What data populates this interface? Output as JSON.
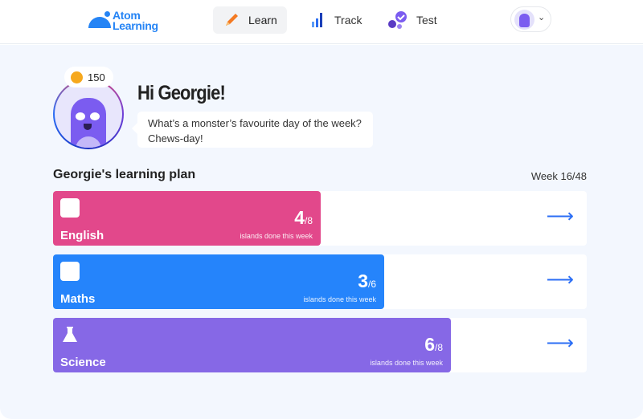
{
  "header": {
    "logo": "Atom Learning",
    "nav": [
      {
        "label": "Learn",
        "icon": "pencil-icon",
        "active": true
      },
      {
        "label": "Track",
        "icon": "bar-chart-icon"
      },
      {
        "label": "Test",
        "icon": "checkmark-badge-icon"
      }
    ]
  },
  "profile": {
    "coins": "150",
    "greeting": "Hi Georgie!",
    "joke": "What’s a monster’s favourite day of the week?",
    "punchline": "Chews-day!"
  },
  "plan": {
    "title": "Georgie's learning plan",
    "week": "Week 16/48",
    "subtitle": "islands done this week",
    "subjects": [
      {
        "name": "English",
        "done": "4",
        "total": "/8",
        "color": "#e2488b",
        "icon": "book-icon"
      },
      {
        "name": "Maths",
        "done": "3",
        "total": "/6",
        "color": "#2584fb",
        "icon": "divide-icon"
      },
      {
        "name": "Science",
        "done": "6",
        "total": "/8",
        "color": "#8668e6",
        "icon": "flask-icon"
      }
    ]
  }
}
